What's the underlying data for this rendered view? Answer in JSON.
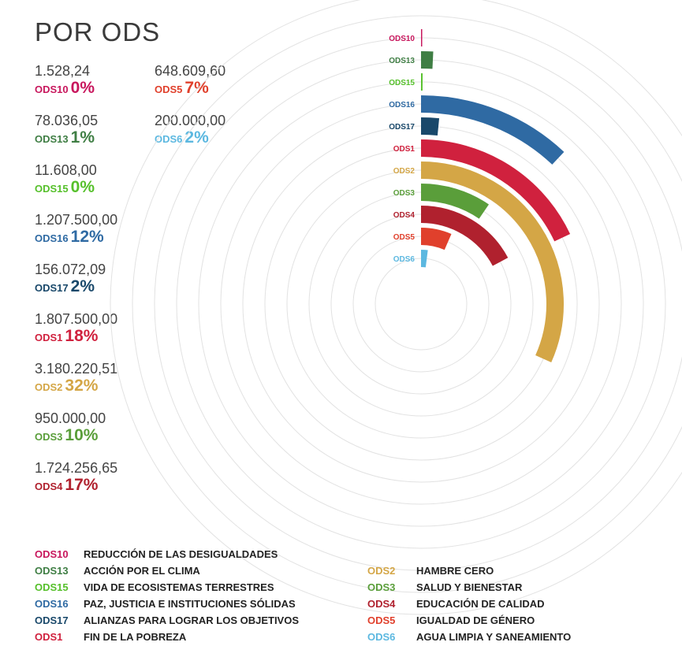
{
  "title": "POR ODS",
  "chart_data": {
    "type": "radial-bar",
    "series": [
      {
        "code": "ODS10",
        "amount": "1.528,24",
        "percent": "0%",
        "value": 0.07,
        "color": "#c8175d"
      },
      {
        "code": "ODS13",
        "amount": "78.036,05",
        "percent": "1%",
        "value": 0.77,
        "color": "#3f7e44"
      },
      {
        "code": "ODS15",
        "amount": "11.608,00",
        "percent": "0%",
        "value": 0.11,
        "color": "#56c02b"
      },
      {
        "code": "ODS16",
        "amount": "1.207.500,00",
        "percent": "12%",
        "value": 12.0,
        "color": "#2f6aa3"
      },
      {
        "code": "ODS17",
        "amount": "156.072,09",
        "percent": "2%",
        "value": 1.55,
        "color": "#19486a"
      },
      {
        "code": "ODS1",
        "amount": "1.807.500,00",
        "percent": "18%",
        "value": 18.0,
        "color": "#d0213e"
      },
      {
        "code": "ODS2",
        "amount": "3.180.220,51",
        "percent": "32%",
        "value": 31.7,
        "color": "#d4a646"
      },
      {
        "code": "ODS3",
        "amount": "950.000,00",
        "percent": "10%",
        "value": 9.5,
        "color": "#5a9e3a"
      },
      {
        "code": "ODS4",
        "amount": "1.724.256,65",
        "percent": "17%",
        "value": 17.2,
        "color": "#b0212e"
      },
      {
        "code": "ODS5",
        "amount": "648.609,60",
        "percent": "7%",
        "value": 6.5,
        "color": "#e0402c"
      },
      {
        "code": "ODS6",
        "amount": "200.000,00",
        "percent": "2%",
        "value": 2.0,
        "color": "#5cb8e0"
      }
    ]
  },
  "legend_left": [
    {
      "code": "ODS10",
      "name": "REDUCCIÓN DE LAS DESIGUALDADES",
      "color": "#c8175d"
    },
    {
      "code": "ODS13",
      "name": "ACCIÓN POR EL CLIMA",
      "color": "#3f7e44"
    },
    {
      "code": "ODS15",
      "name": "VIDA DE ECOSISTEMAS TERRESTRES",
      "color": "#56c02b"
    },
    {
      "code": "ODS16",
      "name": "PAZ, JUSTICIA E INSTITUCIONES SÓLIDAS",
      "color": "#2f6aa3"
    },
    {
      "code": "ODS17",
      "name": "ALIANZAS PARA LOGRAR LOS OBJETIVOS",
      "color": "#19486a"
    },
    {
      "code": "ODS1",
      "name": "FIN DE LA POBREZA",
      "color": "#d0213e"
    }
  ],
  "legend_right": [
    {
      "code": "ODS2",
      "name": "HAMBRE CERO",
      "color": "#d4a646"
    },
    {
      "code": "ODS3",
      "name": "SALUD Y BIENESTAR",
      "color": "#5a9e3a"
    },
    {
      "code": "ODS4",
      "name": "EDUCACIÓN DE CALIDAD",
      "color": "#b0212e"
    },
    {
      "code": "ODS5",
      "name": "IGUALDAD DE GÉNERO",
      "color": "#e0402c"
    },
    {
      "code": "ODS6",
      "name": "AGUA LIMPIA Y SANEAMIENTO",
      "color": "#5cb8e0"
    }
  ]
}
